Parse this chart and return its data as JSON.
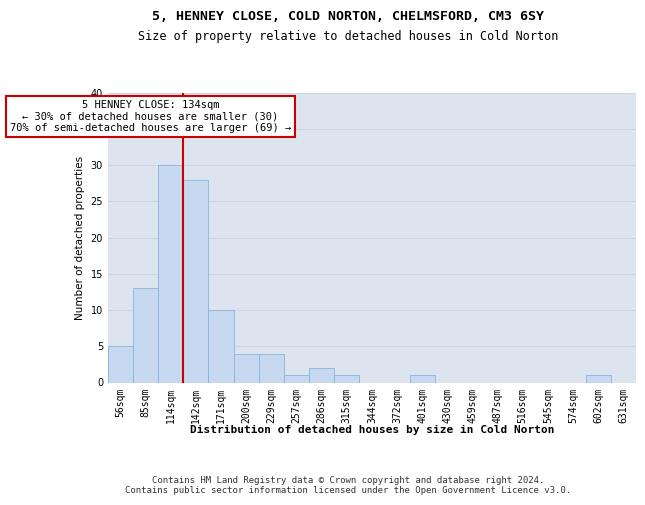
{
  "title_line1": "5, HENNEY CLOSE, COLD NORTON, CHELMSFORD, CM3 6SY",
  "title_line2": "Size of property relative to detached houses in Cold Norton",
  "xlabel": "Distribution of detached houses by size in Cold Norton",
  "ylabel": "Number of detached properties",
  "bin_labels": [
    "56sqm",
    "85sqm",
    "114sqm",
    "142sqm",
    "171sqm",
    "200sqm",
    "229sqm",
    "257sqm",
    "286sqm",
    "315sqm",
    "344sqm",
    "372sqm",
    "401sqm",
    "430sqm",
    "459sqm",
    "487sqm",
    "516sqm",
    "545sqm",
    "574sqm",
    "602sqm",
    "631sqm"
  ],
  "bar_values": [
    5,
    13,
    30,
    28,
    10,
    4,
    4,
    1,
    2,
    1,
    0,
    0,
    1,
    0,
    0,
    0,
    0,
    0,
    0,
    1,
    0
  ],
  "bar_color": "#c6d9f0",
  "bar_edge_color": "#8ab4d8",
  "vline_color": "#cc0000",
  "vline_x": 2.5,
  "annotation_text": "5 HENNEY CLOSE: 134sqm\n← 30% of detached houses are smaller (30)\n70% of semi-detached houses are larger (69) →",
  "annotation_box_facecolor": "#ffffff",
  "annotation_box_edgecolor": "#cc0000",
  "ylim_max": 40,
  "yticks": [
    0,
    5,
    10,
    15,
    20,
    25,
    30,
    35,
    40
  ],
  "grid_color": "#cdd5e5",
  "background_color": "#dce4f0",
  "title1_fontsize": 9.5,
  "title2_fontsize": 8.5,
  "xlabel_fontsize": 8,
  "ylabel_fontsize": 7.5,
  "tick_fontsize": 7,
  "annotation_fontsize": 7.5,
  "footer_fontsize": 6.5,
  "footer_text": "Contains HM Land Registry data © Crown copyright and database right 2024.\nContains public sector information licensed under the Open Government Licence v3.0."
}
